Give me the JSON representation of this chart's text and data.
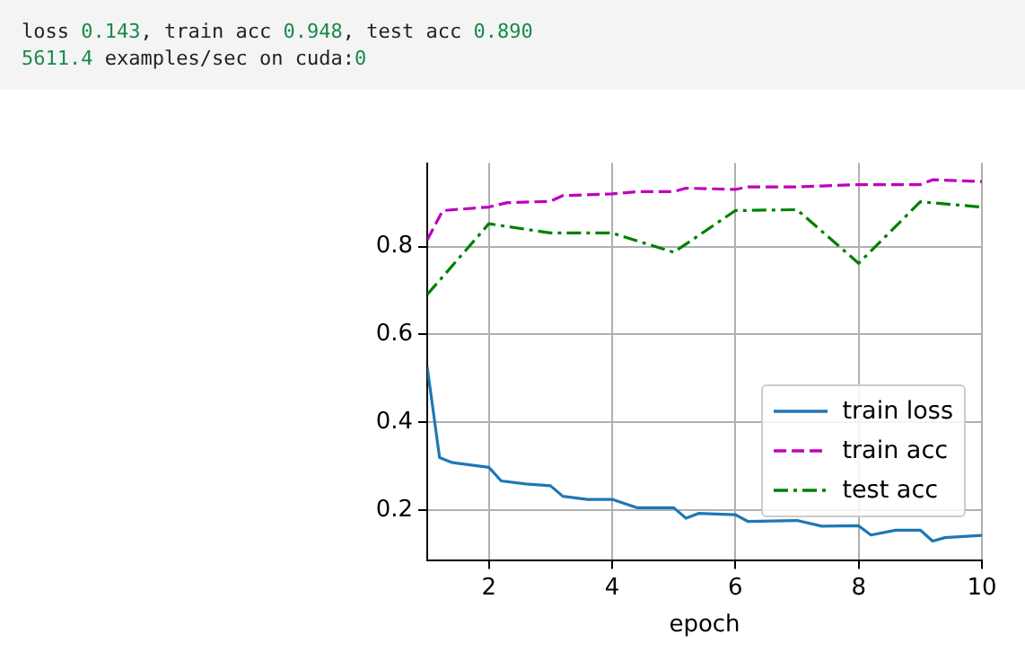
{
  "chart_data": {
    "type": "line",
    "xlabel": "epoch",
    "annotations": [
      "loss 0.143, train acc 0.948, test acc 0.890",
      "5611.4 examples/sec on cuda:0"
    ],
    "xlim": [
      1,
      10
    ],
    "ylim": [
      0.087,
      0.99
    ],
    "xticks": [
      2,
      4,
      6,
      8,
      10
    ],
    "yticks": [
      0.2,
      0.4,
      0.6,
      0.8
    ],
    "grid": true,
    "legend": "right",
    "marker": "none",
    "series": [
      {
        "name": "train loss",
        "color": "#1f77b4",
        "line_style": "solid",
        "x": [
          1,
          1.2,
          1.4,
          2,
          2.2,
          2.6,
          3,
          3.2,
          3.6,
          4,
          4.4,
          5,
          5.2,
          5.4,
          6,
          6.2,
          7,
          7.4,
          8,
          8.2,
          8.6,
          9,
          9.2,
          9.4,
          10
        ],
        "values": [
          0.526,
          0.32,
          0.309,
          0.298,
          0.267,
          0.26,
          0.256,
          0.232,
          0.225,
          0.225,
          0.206,
          0.206,
          0.182,
          0.193,
          0.19,
          0.175,
          0.177,
          0.164,
          0.165,
          0.144,
          0.155,
          0.155,
          0.13,
          0.138,
          0.143
        ]
      },
      {
        "name": "train acc",
        "color": "#bf00bf",
        "line_style": "dashed",
        "x": [
          1,
          1.25,
          2,
          2.3,
          3,
          3.2,
          4,
          4.4,
          5,
          5.2,
          6,
          6.2,
          7,
          7.4,
          8,
          8.2,
          9,
          9.2,
          10
        ],
        "values": [
          0.815,
          0.882,
          0.89,
          0.9,
          0.903,
          0.916,
          0.92,
          0.925,
          0.925,
          0.933,
          0.93,
          0.936,
          0.936,
          0.938,
          0.941,
          0.941,
          0.941,
          0.952,
          0.948
        ]
      },
      {
        "name": "test acc",
        "color": "#008000",
        "line_style": "dashdot",
        "x": [
          1,
          2,
          3,
          4,
          5,
          6,
          7,
          8,
          9,
          10
        ],
        "values": [
          0.691,
          0.852,
          0.831,
          0.831,
          0.787,
          0.882,
          0.884,
          0.762,
          0.902,
          0.89
        ]
      }
    ]
  }
}
